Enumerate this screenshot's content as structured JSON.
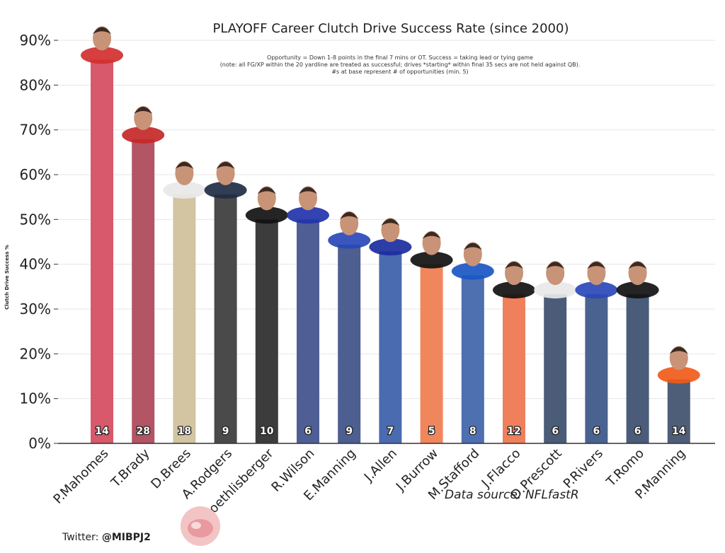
{
  "chart_data": {
    "type": "bar",
    "title": "PLAYOFF Career Clutch Drive Success Rate (since 2000)",
    "subtitle": [
      "Opportunity = Down 1-8 points in the final 7 mins or OT. Success = taking lead or tying game",
      "(note: all FG/XP within the 20 yardline are treated as successful; drives *starting* within final 35 secs are not held against QB).",
      "#s at base represent # of opportunities (min. 5)"
    ],
    "ylabel": "Clutch Drive Success %",
    "xlabel": "",
    "ylim": [
      0,
      90
    ],
    "yticks": [
      "0%",
      "10%",
      "20%",
      "30%",
      "40%",
      "50%",
      "60%",
      "70%",
      "80%",
      "90%"
    ],
    "grid": true,
    "categories": [
      "P.Mahomes",
      "T.Brady",
      "D.Brees",
      "A.Rodgers",
      "B.Roethlisberger",
      "R.Wilson",
      "E.Manning",
      "J.Allen",
      "J.Burrow",
      "M.Stafford",
      "J.Flacco",
      "D.Prescott",
      "P.Rivers",
      "T.Romo",
      "P.Manning"
    ],
    "values": [
      85.7,
      67.9,
      55.6,
      55.6,
      50.0,
      50.0,
      44.4,
      42.9,
      40.0,
      37.5,
      33.3,
      33.3,
      33.3,
      33.3,
      14.3
    ],
    "opportunities": [
      "14",
      "28",
      "18",
      "9",
      "10",
      "6",
      "9",
      "7",
      "5",
      "8",
      "12",
      "6",
      "6",
      "6",
      "14"
    ],
    "colors": [
      "#d8596b",
      "#b35564",
      "#d3c4a2",
      "#4a4a4a",
      "#3c3c3c",
      "#4f5f95",
      "#4d5e90",
      "#4a6bb0",
      "#f0875c",
      "#4e6fb0",
      "#f07f5c",
      "#4a5c77",
      "#4a6290",
      "#4a5c7a",
      "#4f5e78"
    ],
    "helmet_colors": [
      "#d32f2f",
      "#c62828",
      "#e8e8e8",
      "#1f2d44",
      "#111111",
      "#2233aa",
      "#2a48b8",
      "#1a2d9e",
      "#111111",
      "#1a56c4",
      "#111111",
      "#e8e8e8",
      "#2a48b8",
      "#111111",
      "#f05a1a"
    ]
  },
  "footer": {
    "credit_prefix": "Twitter: ",
    "credit_handle": "@MIBPJ2",
    "source": "Data source: NFLfastR"
  }
}
